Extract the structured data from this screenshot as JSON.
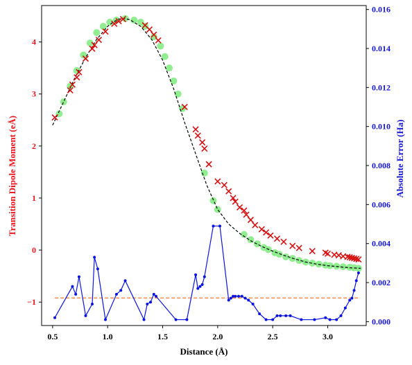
{
  "chart_data": {
    "type": "line",
    "xlabel": "Distance (Å)",
    "ylabel_left": "Transition Dipole Moment (eÅ)",
    "ylabel_right": "Absolute Error (Ha)",
    "xlim": [
      0.4,
      3.35
    ],
    "ylim_left": [
      -1.45,
      4.7
    ],
    "ylim_right": [
      -0.0002,
      0.0162
    ],
    "xticks": [
      0.5,
      1.0,
      1.5,
      2.0,
      2.5,
      3.0
    ],
    "xtick_labels": [
      "0.5",
      "1.0",
      "1.5",
      "2.0",
      "2.5",
      "3.0"
    ],
    "yticks_left": [
      -1,
      0,
      1,
      2,
      3,
      4
    ],
    "ytick_labels_left": [
      "−1",
      "0",
      "1",
      "2",
      "3",
      "4"
    ],
    "yticks_right": [
      0.0,
      0.002,
      0.004,
      0.006,
      0.008,
      0.01,
      0.012,
      0.014,
      0.016
    ],
    "ytick_labels_right": [
      "0.000",
      "0.002",
      "0.004",
      "0.006",
      "0.008",
      "0.010",
      "0.012",
      "0.014",
      "0.016"
    ],
    "colors": {
      "left_axis": "#e8141c",
      "right_axis": "#1515d6",
      "reference_curve": "#000000",
      "green_markers": "#90ee90",
      "red_markers": "#d41010",
      "error_line": "#0a14e0",
      "threshold_line": "#ff6a13"
    },
    "series": [
      {
        "axis": "left",
        "style": "dashed-line",
        "x": [
          0.5,
          0.6,
          0.7,
          0.8,
          0.9,
          1.0,
          1.05,
          1.1,
          1.15,
          1.2,
          1.3,
          1.4,
          1.5,
          1.6,
          1.7,
          1.8,
          1.9,
          2.0,
          2.1,
          2.2,
          2.3,
          2.4,
          2.5,
          2.6,
          2.7,
          2.8,
          2.9,
          3.0,
          3.1,
          3.2,
          3.3
        ],
        "y": [
          2.4,
          2.85,
          3.3,
          3.7,
          4.05,
          4.3,
          4.38,
          4.44,
          4.45,
          4.43,
          4.3,
          4.05,
          3.65,
          3.1,
          2.45,
          1.85,
          1.25,
          0.78,
          0.5,
          0.32,
          0.18,
          0.07,
          -0.02,
          -0.1,
          -0.17,
          -0.23,
          -0.27,
          -0.3,
          -0.32,
          -0.34,
          -0.35
        ]
      },
      {
        "axis": "left",
        "style": "circle-markers",
        "x": [
          0.56,
          0.6,
          0.66,
          0.72,
          0.78,
          0.84,
          0.9,
          0.96,
          1.02,
          1.08,
          1.16,
          1.24,
          1.3,
          1.34,
          1.42,
          1.48,
          1.52,
          1.56,
          1.6,
          1.64,
          1.68,
          1.88,
          1.96,
          2.0,
          2.24,
          2.3,
          2.36,
          2.42,
          2.46,
          2.52,
          2.56,
          2.62,
          2.68,
          2.74,
          2.8,
          2.86,
          2.92,
          2.98,
          3.02,
          3.08,
          3.14,
          3.2,
          3.24,
          3.28
        ],
        "y": [
          2.62,
          2.85,
          3.15,
          3.45,
          3.75,
          3.98,
          4.18,
          4.3,
          4.38,
          4.42,
          4.45,
          4.42,
          4.38,
          4.3,
          4.1,
          3.92,
          3.72,
          3.5,
          3.25,
          3.0,
          2.72,
          1.48,
          0.95,
          0.78,
          0.3,
          0.2,
          0.12,
          0.05,
          0.01,
          -0.05,
          -0.08,
          -0.13,
          -0.16,
          -0.2,
          -0.23,
          -0.25,
          -0.27,
          -0.29,
          -0.3,
          -0.31,
          -0.32,
          -0.33,
          -0.34,
          -0.35
        ]
      },
      {
        "axis": "left",
        "style": "x-markers",
        "x": [
          0.52,
          0.66,
          0.68,
          0.72,
          0.74,
          0.8,
          0.86,
          0.88,
          0.92,
          0.98,
          1.06,
          1.1,
          1.14,
          1.34,
          1.38,
          1.42,
          1.46,
          1.7,
          1.8,
          1.82,
          1.86,
          1.88,
          1.92,
          2.0,
          2.06,
          2.1,
          2.14,
          2.16,
          2.2,
          2.24,
          2.26,
          2.3,
          2.34,
          2.4,
          2.44,
          2.48,
          2.54,
          2.6,
          2.68,
          2.74,
          2.86,
          2.98,
          3.0,
          3.06,
          3.1,
          3.14,
          3.18,
          3.2,
          3.22,
          3.24,
          3.26,
          3.28
        ],
        "y": [
          2.55,
          3.07,
          3.18,
          3.32,
          3.42,
          3.68,
          3.87,
          3.94,
          4.04,
          4.2,
          4.35,
          4.4,
          4.44,
          4.32,
          4.24,
          4.14,
          4.03,
          2.75,
          2.32,
          2.2,
          2.07,
          1.95,
          1.65,
          1.32,
          1.25,
          1.13,
          1.0,
          0.93,
          0.82,
          0.76,
          0.68,
          0.58,
          0.48,
          0.4,
          0.34,
          0.28,
          0.22,
          0.16,
          0.08,
          0.04,
          -0.02,
          -0.05,
          -0.07,
          -0.09,
          -0.1,
          -0.12,
          -0.13,
          -0.14,
          -0.15,
          -0.16,
          -0.17,
          -0.18
        ]
      },
      {
        "axis": "left",
        "style": "threshold-dashed",
        "x": [
          0.52,
          3.28
        ],
        "y": [
          -0.92,
          -0.92
        ]
      },
      {
        "axis": "right",
        "style": "line-with-dots",
        "x": [
          0.52,
          0.68,
          0.71,
          0.74,
          0.8,
          0.86,
          0.88,
          0.91,
          0.98,
          1.08,
          1.12,
          1.16,
          1.33,
          1.36,
          1.39,
          1.42,
          1.44,
          1.62,
          1.72,
          1.8,
          1.82,
          1.84,
          1.86,
          1.88,
          1.96,
          2.02,
          2.1,
          2.12,
          2.14,
          2.16,
          2.19,
          2.22,
          2.25,
          2.28,
          2.32,
          2.38,
          2.44,
          2.5,
          2.54,
          2.57,
          2.62,
          2.66,
          2.76,
          2.88,
          2.98,
          3.02,
          3.08,
          3.12,
          3.16,
          3.2,
          3.22,
          3.24,
          3.26,
          3.28
        ],
        "y": [
          0.0002,
          0.0018,
          0.0014,
          0.0023,
          0.0003,
          0.0009,
          0.0033,
          0.0027,
          0.0001,
          0.0014,
          0.0016,
          0.0021,
          0.0001,
          0.0009,
          0.001,
          0.0014,
          0.0013,
          0.0001,
          0.0001,
          0.0024,
          0.0017,
          0.0018,
          0.0019,
          0.0023,
          0.0049,
          0.0049,
          0.0011,
          0.0012,
          0.0013,
          0.0013,
          0.0013,
          0.0013,
          0.0012,
          0.0011,
          0.0009,
          0.0004,
          0.0001,
          0.0001,
          0.0003,
          0.0003,
          0.0003,
          0.0003,
          0.0001,
          0.0001,
          0.0002,
          0.0001,
          0.0001,
          0.0003,
          0.0007,
          0.0011,
          0.0012,
          0.0016,
          0.0021,
          0.0025
        ]
      }
    ]
  }
}
